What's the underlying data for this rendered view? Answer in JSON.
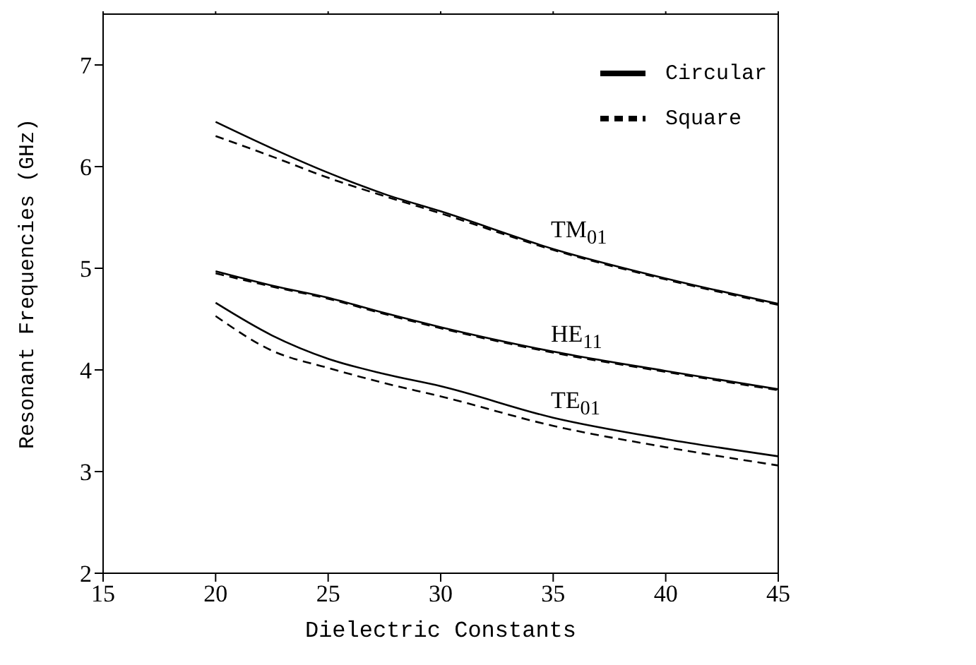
{
  "chart_data": {
    "type": "line",
    "xlabel": "Dielectric Constants",
    "ylabel": "Resonant Frequencies (GHz)",
    "x": [
      20,
      22.5,
      25,
      27.5,
      30,
      35,
      40,
      45
    ],
    "series": [
      {
        "name": "Circular",
        "color": "#000000",
        "line_style": "solid",
        "values": [
          6.44,
          6.18,
          5.94,
          5.73,
          5.56,
          5.19,
          4.9,
          4.65
        ]
      },
      {
        "name": "Square",
        "color": "#000000",
        "line_style": "dashed",
        "values": [
          6.3,
          6.1,
          5.89,
          5.71,
          5.54,
          5.18,
          4.89,
          4.64
        ]
      },
      {
        "color": "#000000",
        "line_style": "solid",
        "values": [
          4.97,
          4.83,
          4.71,
          4.56,
          4.42,
          4.18,
          3.99,
          3.81
        ]
      },
      {
        "color": "#000000",
        "line_style": "dashed",
        "values": [
          4.95,
          4.82,
          4.7,
          4.55,
          4.41,
          4.17,
          3.98,
          3.8
        ]
      },
      {
        "color": "#000000",
        "line_style": "solid",
        "values": [
          4.66,
          4.34,
          4.11,
          3.96,
          3.84,
          3.53,
          3.32,
          3.15
        ]
      },
      {
        "color": "#000000",
        "line_style": "dashed",
        "values": [
          4.53,
          4.19,
          4.02,
          3.87,
          3.74,
          3.45,
          3.24,
          3.06
        ]
      }
    ],
    "xlim": [
      15,
      45
    ],
    "xticks": [
      15,
      20,
      25,
      30,
      35,
      40,
      45
    ],
    "ylim": [
      2,
      7.5
    ],
    "yticks": [
      2,
      3,
      4,
      5,
      6,
      7
    ],
    "annotations": [
      "TM$_{01}$",
      "HE$_{11}$",
      "TE$_{01}$"
    ],
    "legend": "top right",
    "marker": "none",
    "grid": false
  }
}
